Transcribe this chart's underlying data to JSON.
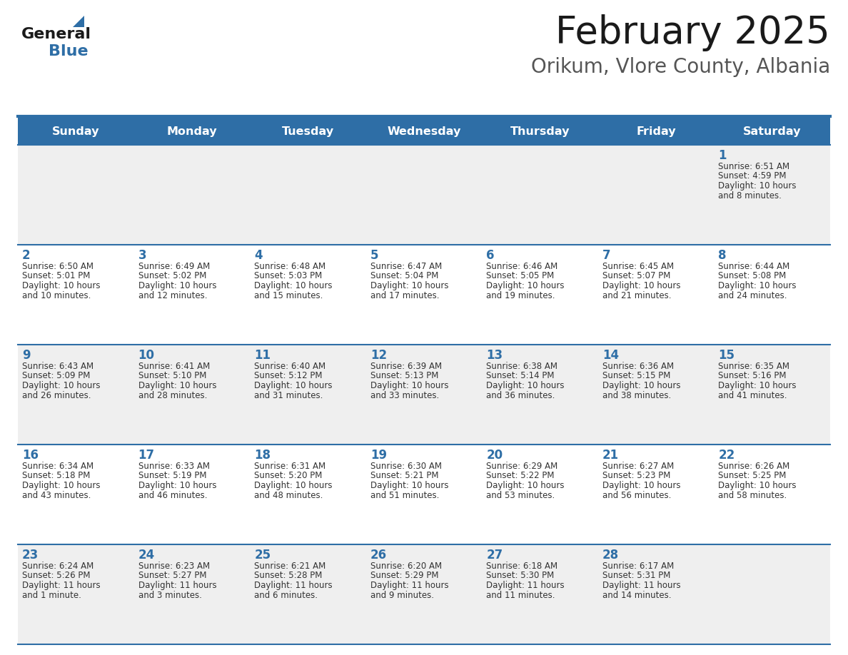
{
  "title": "February 2025",
  "subtitle": "Orikum, Vlore County, Albania",
  "days_of_week": [
    "Sunday",
    "Monday",
    "Tuesday",
    "Wednesday",
    "Thursday",
    "Friday",
    "Saturday"
  ],
  "header_bg": "#2E6EA6",
  "header_text": "#FFFFFF",
  "row_bg_odd": "#EFEFEF",
  "row_bg_even": "#FFFFFF",
  "border_color": "#2E6EA6",
  "day_number_color": "#2E6EA6",
  "text_color": "#333333",
  "calendar_data": [
    {
      "day": 1,
      "col": 6,
      "row": 0,
      "sunrise": "6:51 AM",
      "sunset": "4:59 PM",
      "daylight_h": "10 hours",
      "daylight_m": "and 8 minutes."
    },
    {
      "day": 2,
      "col": 0,
      "row": 1,
      "sunrise": "6:50 AM",
      "sunset": "5:01 PM",
      "daylight_h": "10 hours",
      "daylight_m": "and 10 minutes."
    },
    {
      "day": 3,
      "col": 1,
      "row": 1,
      "sunrise": "6:49 AM",
      "sunset": "5:02 PM",
      "daylight_h": "10 hours",
      "daylight_m": "and 12 minutes."
    },
    {
      "day": 4,
      "col": 2,
      "row": 1,
      "sunrise": "6:48 AM",
      "sunset": "5:03 PM",
      "daylight_h": "10 hours",
      "daylight_m": "and 15 minutes."
    },
    {
      "day": 5,
      "col": 3,
      "row": 1,
      "sunrise": "6:47 AM",
      "sunset": "5:04 PM",
      "daylight_h": "10 hours",
      "daylight_m": "and 17 minutes."
    },
    {
      "day": 6,
      "col": 4,
      "row": 1,
      "sunrise": "6:46 AM",
      "sunset": "5:05 PM",
      "daylight_h": "10 hours",
      "daylight_m": "and 19 minutes."
    },
    {
      "day": 7,
      "col": 5,
      "row": 1,
      "sunrise": "6:45 AM",
      "sunset": "5:07 PM",
      "daylight_h": "10 hours",
      "daylight_m": "and 21 minutes."
    },
    {
      "day": 8,
      "col": 6,
      "row": 1,
      "sunrise": "6:44 AM",
      "sunset": "5:08 PM",
      "daylight_h": "10 hours",
      "daylight_m": "and 24 minutes."
    },
    {
      "day": 9,
      "col": 0,
      "row": 2,
      "sunrise": "6:43 AM",
      "sunset": "5:09 PM",
      "daylight_h": "10 hours",
      "daylight_m": "and 26 minutes."
    },
    {
      "day": 10,
      "col": 1,
      "row": 2,
      "sunrise": "6:41 AM",
      "sunset": "5:10 PM",
      "daylight_h": "10 hours",
      "daylight_m": "and 28 minutes."
    },
    {
      "day": 11,
      "col": 2,
      "row": 2,
      "sunrise": "6:40 AM",
      "sunset": "5:12 PM",
      "daylight_h": "10 hours",
      "daylight_m": "and 31 minutes."
    },
    {
      "day": 12,
      "col": 3,
      "row": 2,
      "sunrise": "6:39 AM",
      "sunset": "5:13 PM",
      "daylight_h": "10 hours",
      "daylight_m": "and 33 minutes."
    },
    {
      "day": 13,
      "col": 4,
      "row": 2,
      "sunrise": "6:38 AM",
      "sunset": "5:14 PM",
      "daylight_h": "10 hours",
      "daylight_m": "and 36 minutes."
    },
    {
      "day": 14,
      "col": 5,
      "row": 2,
      "sunrise": "6:36 AM",
      "sunset": "5:15 PM",
      "daylight_h": "10 hours",
      "daylight_m": "and 38 minutes."
    },
    {
      "day": 15,
      "col": 6,
      "row": 2,
      "sunrise": "6:35 AM",
      "sunset": "5:16 PM",
      "daylight_h": "10 hours",
      "daylight_m": "and 41 minutes."
    },
    {
      "day": 16,
      "col": 0,
      "row": 3,
      "sunrise": "6:34 AM",
      "sunset": "5:18 PM",
      "daylight_h": "10 hours",
      "daylight_m": "and 43 minutes."
    },
    {
      "day": 17,
      "col": 1,
      "row": 3,
      "sunrise": "6:33 AM",
      "sunset": "5:19 PM",
      "daylight_h": "10 hours",
      "daylight_m": "and 46 minutes."
    },
    {
      "day": 18,
      "col": 2,
      "row": 3,
      "sunrise": "6:31 AM",
      "sunset": "5:20 PM",
      "daylight_h": "10 hours",
      "daylight_m": "and 48 minutes."
    },
    {
      "day": 19,
      "col": 3,
      "row": 3,
      "sunrise": "6:30 AM",
      "sunset": "5:21 PM",
      "daylight_h": "10 hours",
      "daylight_m": "and 51 minutes."
    },
    {
      "day": 20,
      "col": 4,
      "row": 3,
      "sunrise": "6:29 AM",
      "sunset": "5:22 PM",
      "daylight_h": "10 hours",
      "daylight_m": "and 53 minutes."
    },
    {
      "day": 21,
      "col": 5,
      "row": 3,
      "sunrise": "6:27 AM",
      "sunset": "5:23 PM",
      "daylight_h": "10 hours",
      "daylight_m": "and 56 minutes."
    },
    {
      "day": 22,
      "col": 6,
      "row": 3,
      "sunrise": "6:26 AM",
      "sunset": "5:25 PM",
      "daylight_h": "10 hours",
      "daylight_m": "and 58 minutes."
    },
    {
      "day": 23,
      "col": 0,
      "row": 4,
      "sunrise": "6:24 AM",
      "sunset": "5:26 PM",
      "daylight_h": "11 hours",
      "daylight_m": "and 1 minute."
    },
    {
      "day": 24,
      "col": 1,
      "row": 4,
      "sunrise": "6:23 AM",
      "sunset": "5:27 PM",
      "daylight_h": "11 hours",
      "daylight_m": "and 3 minutes."
    },
    {
      "day": 25,
      "col": 2,
      "row": 4,
      "sunrise": "6:21 AM",
      "sunset": "5:28 PM",
      "daylight_h": "11 hours",
      "daylight_m": "and 6 minutes."
    },
    {
      "day": 26,
      "col": 3,
      "row": 4,
      "sunrise": "6:20 AM",
      "sunset": "5:29 PM",
      "daylight_h": "11 hours",
      "daylight_m": "and 9 minutes."
    },
    {
      "day": 27,
      "col": 4,
      "row": 4,
      "sunrise": "6:18 AM",
      "sunset": "5:30 PM",
      "daylight_h": "11 hours",
      "daylight_m": "and 11 minutes."
    },
    {
      "day": 28,
      "col": 5,
      "row": 4,
      "sunrise": "6:17 AM",
      "sunset": "5:31 PM",
      "daylight_h": "11 hours",
      "daylight_m": "and 14 minutes."
    }
  ],
  "num_rows": 5,
  "num_cols": 7,
  "fig_width": 11.88,
  "fig_height": 9.18,
  "dpi": 100
}
